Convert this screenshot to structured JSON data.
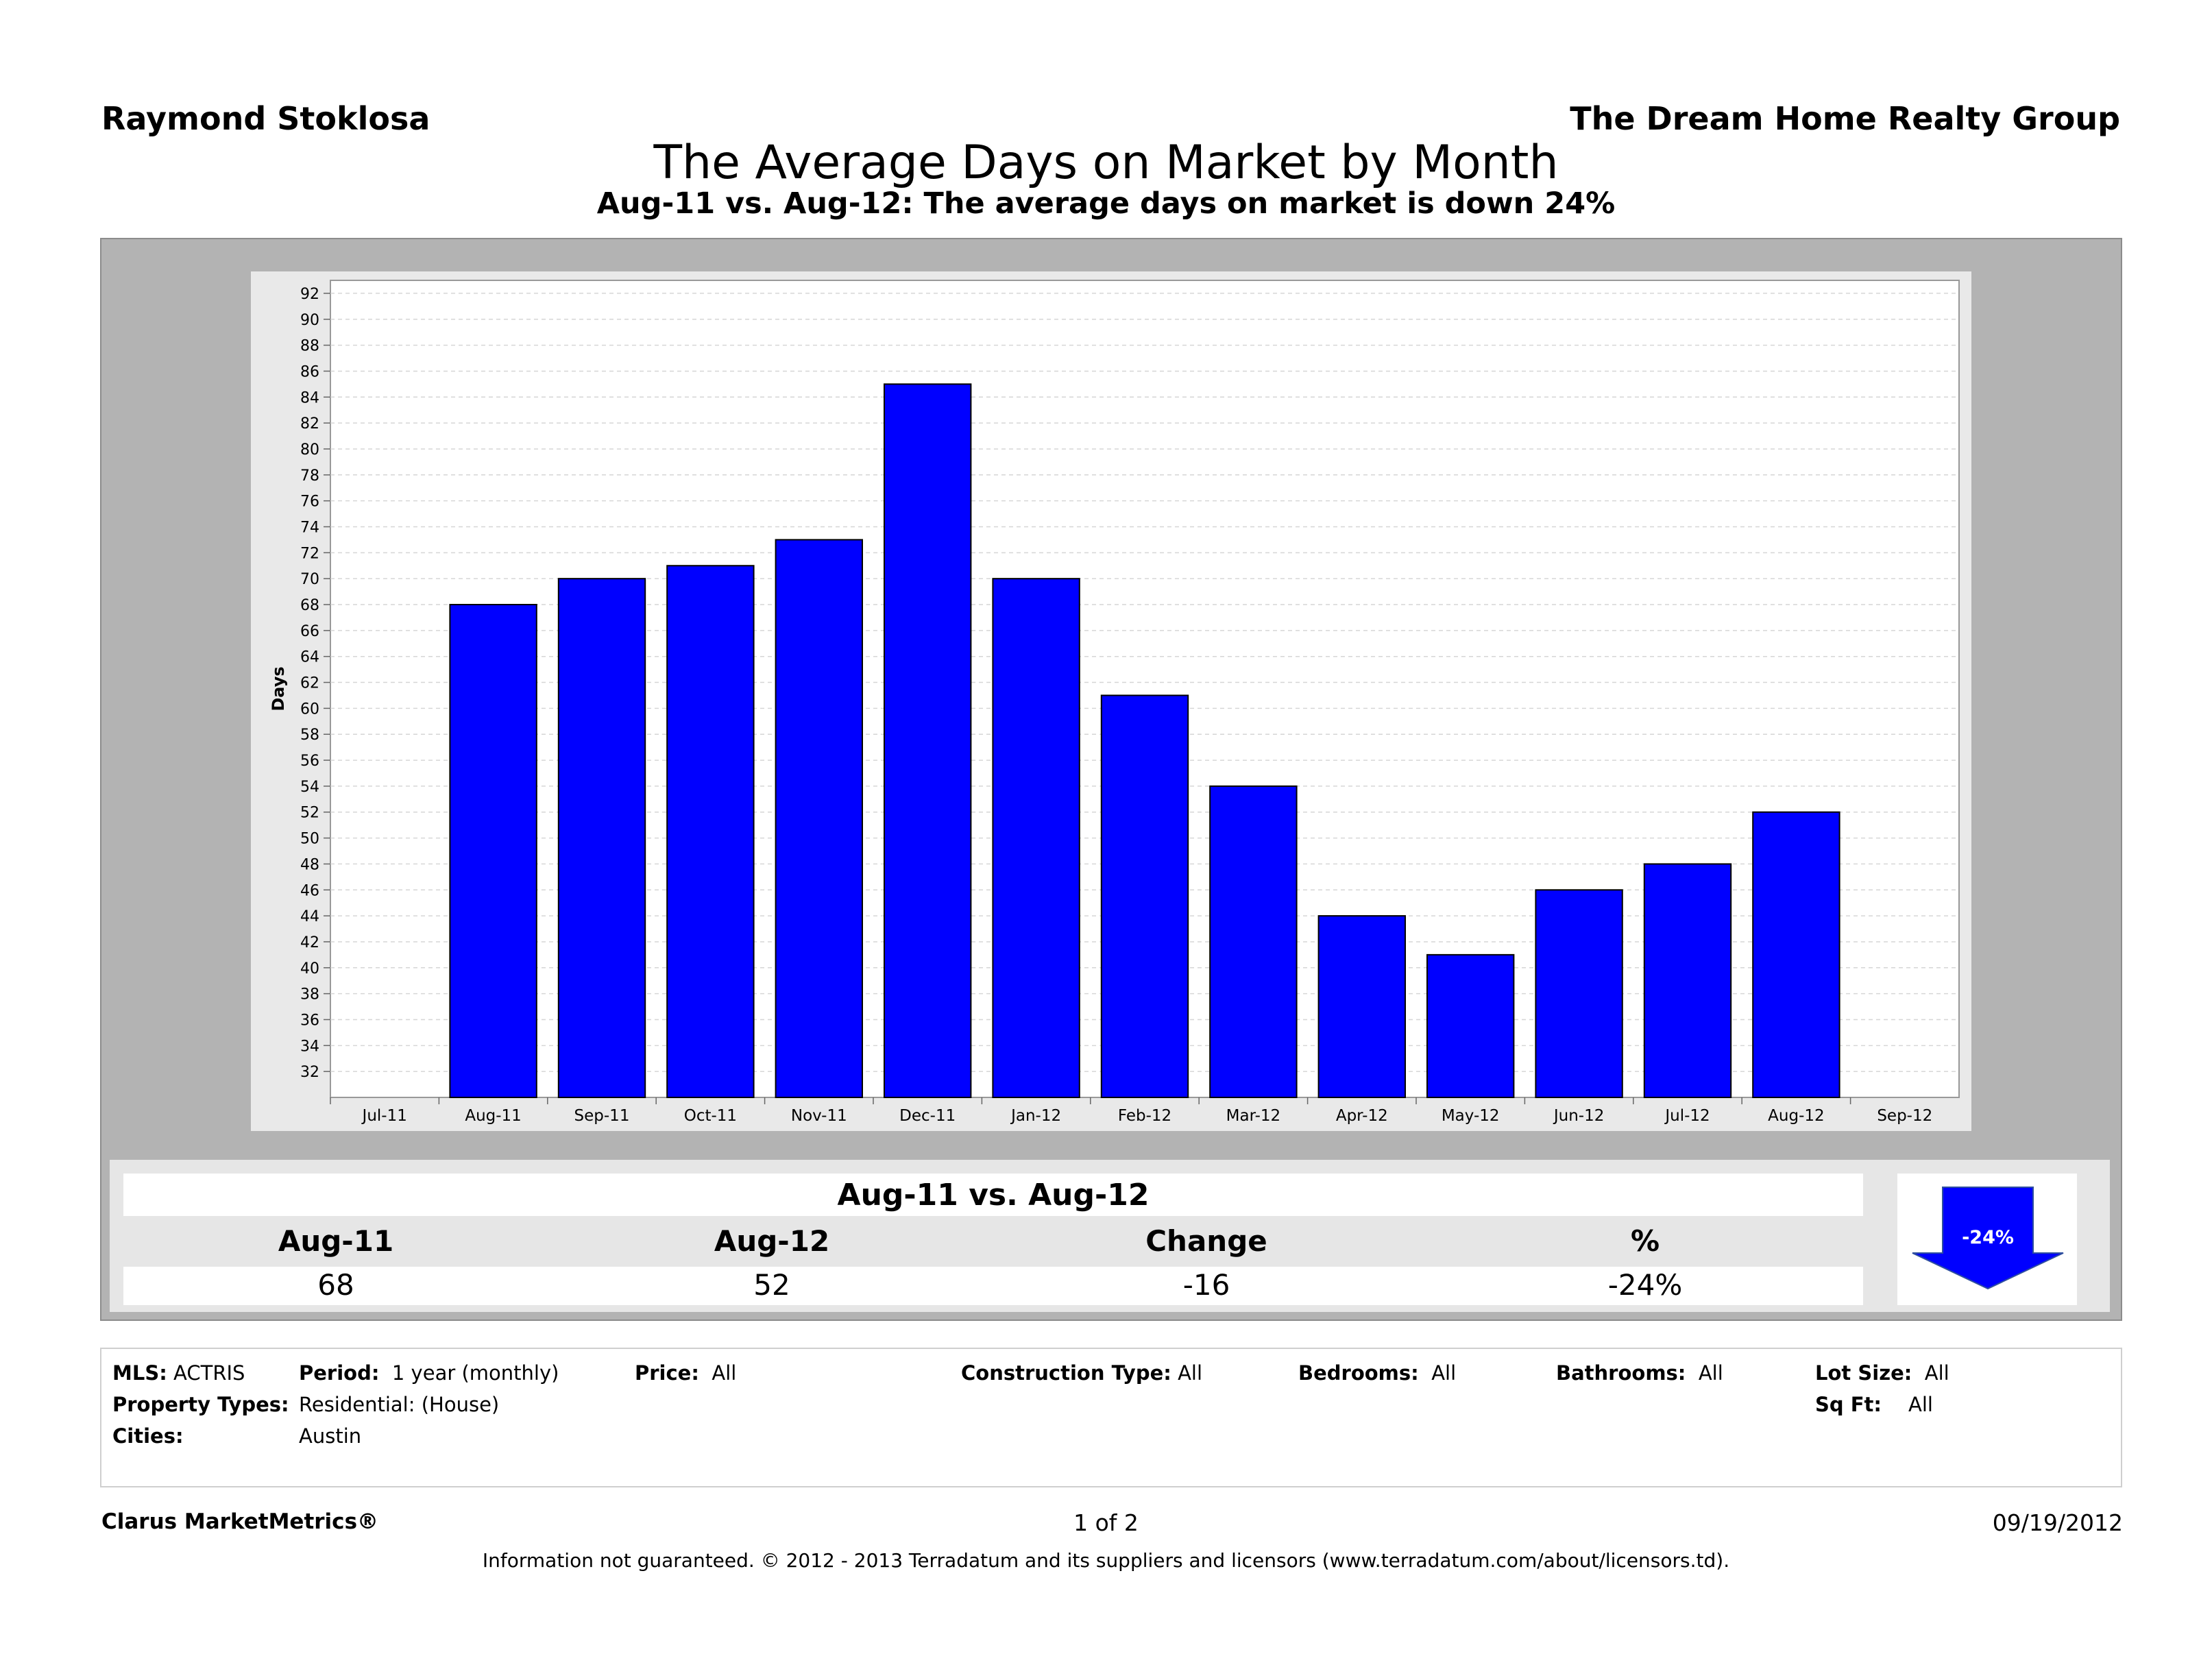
{
  "header": {
    "agent": "Raymond Stoklosa",
    "company": "The Dream Home Realty Group",
    "title": "The Average Days on Market by Month",
    "subtitle": "Aug-11 vs. Aug-12:  The average days on market is down 24%"
  },
  "chart_data": {
    "type": "bar",
    "ylabel": "Days",
    "ylim": [
      30,
      93
    ],
    "yticks": [
      32,
      34,
      36,
      38,
      40,
      42,
      44,
      46,
      48,
      50,
      52,
      54,
      56,
      58,
      60,
      62,
      64,
      66,
      68,
      70,
      72,
      74,
      76,
      78,
      80,
      82,
      84,
      86,
      88,
      90,
      92
    ],
    "x_tick_labels": [
      "Jul-11",
      "Aug-11",
      "Sep-11",
      "Oct-11",
      "Nov-11",
      "Dec-11",
      "Jan-12",
      "Feb-12",
      "Mar-12",
      "Apr-12",
      "May-12",
      "Jun-12",
      "Jul-12",
      "Aug-12",
      "Sep-12"
    ],
    "categories": [
      "Aug-11",
      "Sep-11",
      "Oct-11",
      "Nov-11",
      "Dec-11",
      "Jan-12",
      "Feb-12",
      "Mar-12",
      "Apr-12",
      "May-12",
      "Jun-12",
      "Jul-12",
      "Aug-12"
    ],
    "values": [
      68,
      70,
      71,
      73,
      85,
      70,
      61,
      54,
      44,
      41,
      46,
      48,
      52
    ],
    "bar_color": "#0000ff",
    "grid": true
  },
  "summary": {
    "title": "Aug-11 vs. Aug-12",
    "headers": [
      "Aug-11",
      "Aug-12",
      "Change",
      "%"
    ],
    "values": [
      "68",
      "52",
      "-16",
      "-24%"
    ],
    "arrow_label": "-24%",
    "arrow_color": "#0000ff"
  },
  "criteria": {
    "mls_label": "MLS:",
    "mls_value": "ACTRIS",
    "period_label": "Period:",
    "period_value": "1 year (monthly)",
    "price_label": "Price:",
    "price_value": "All",
    "construction_label": "Construction Type:",
    "construction_value": "All",
    "bedrooms_label": "Bedrooms:",
    "bedrooms_value": "All",
    "bathrooms_label": "Bathrooms:",
    "bathrooms_value": "All",
    "lotsize_label": "Lot Size:",
    "lotsize_value": "All",
    "proptypes_label": "Property Types:",
    "proptypes_value": "Residential: (House)",
    "sqft_label": "Sq Ft:",
    "sqft_value": "All",
    "cities_label": "Cities:",
    "cities_value": "Austin"
  },
  "footer": {
    "brand": "Clarus MarketMetrics®",
    "page": "1 of 2",
    "date": "09/19/2012",
    "disclaimer": "Information not guaranteed.  © 2012 - 2013 Terradatum and its suppliers and licensors (www.terradatum.com/about/licensors.td)."
  }
}
